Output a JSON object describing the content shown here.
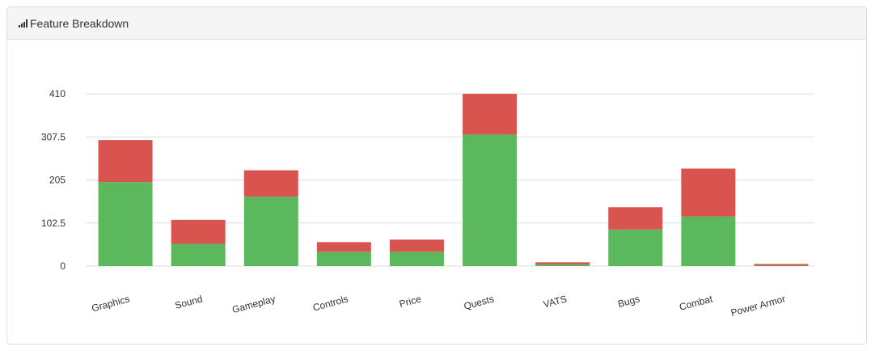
{
  "panel": {
    "title": "Feature Breakdown",
    "icon": "signal-bars-icon"
  },
  "colors": {
    "positive": "#5cb85c",
    "negative": "#d9534f",
    "grid": "#dddddd",
    "text": "#333333"
  },
  "chart_data": {
    "type": "bar",
    "stacked": true,
    "title": "",
    "xlabel": "",
    "ylabel": "",
    "ylim": [
      0,
      410
    ],
    "yticks": [
      "0",
      "102.5",
      "205",
      "307.5",
      "410"
    ],
    "grid": true,
    "legend": "none",
    "categories": [
      "Graphics",
      "Sound",
      "Gameplay",
      "Controls",
      "Price",
      "Quests",
      "VATS",
      "Bugs",
      "Combat",
      "Power Armor"
    ],
    "series": [
      {
        "color": "#5cb85c",
        "values": [
          200,
          53,
          165,
          34,
          34,
          313,
          4,
          87,
          118,
          1
        ]
      },
      {
        "color": "#d9534f",
        "values": [
          100,
          57,
          63,
          23,
          29,
          97,
          5,
          53,
          114,
          4
        ]
      }
    ]
  }
}
